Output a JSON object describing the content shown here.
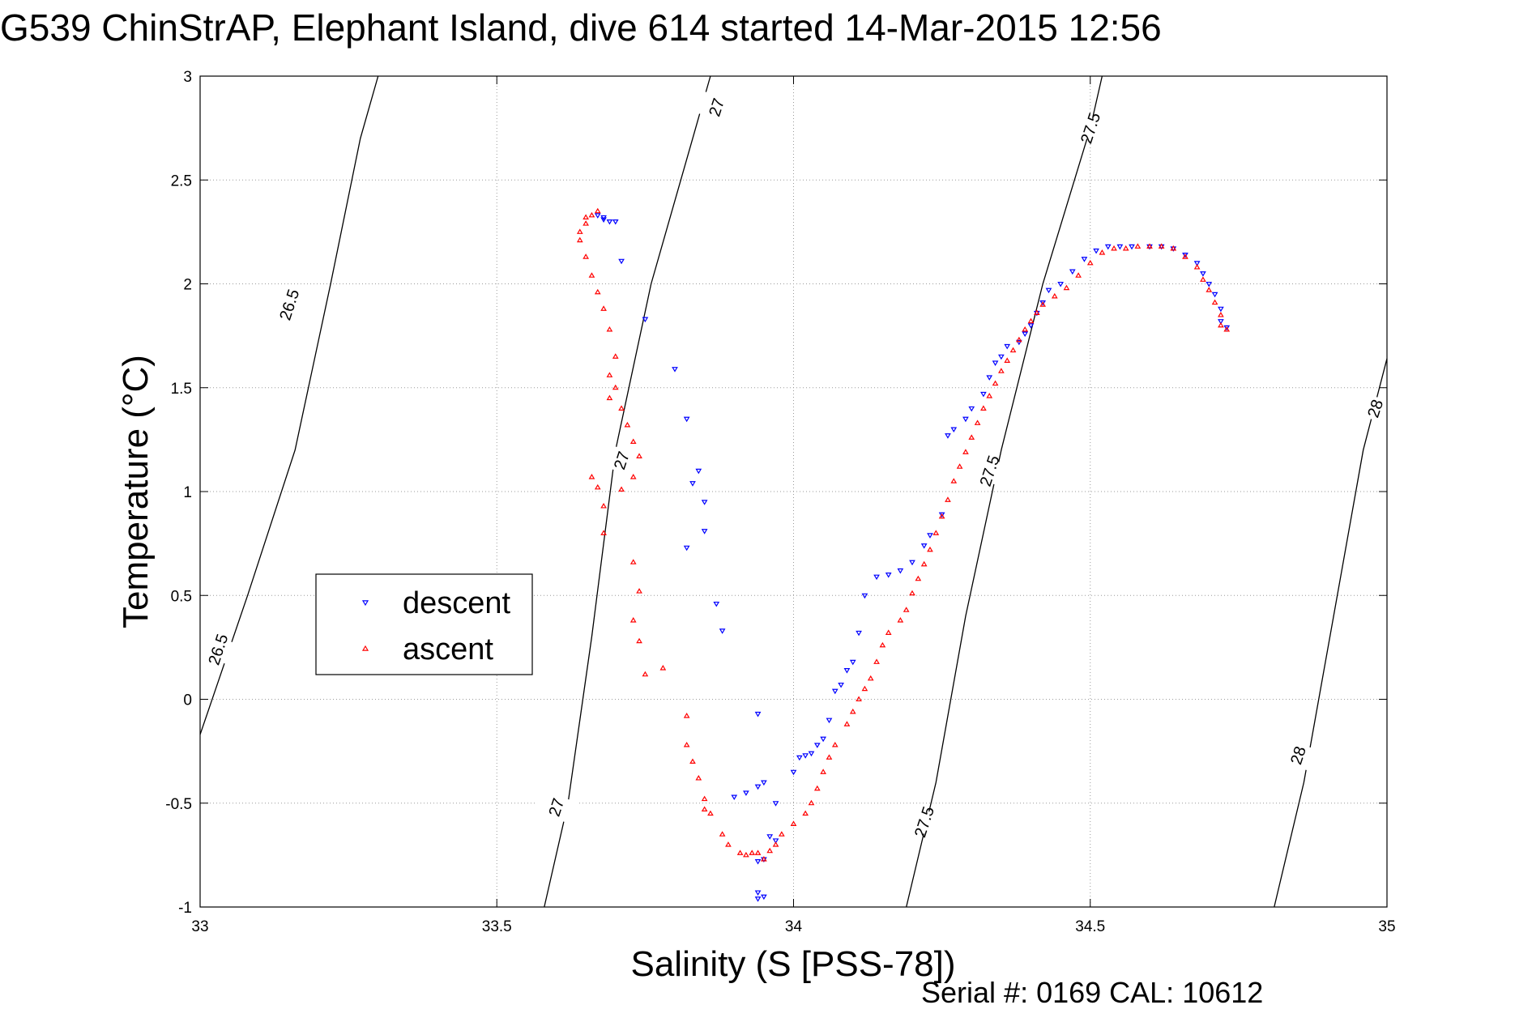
{
  "chart_data": {
    "type": "scatter",
    "title": "G539 ChinStrAP, Elephant Island, dive 614 started 14-Mar-2015 12:56",
    "xlabel": "Salinity (S [PSS-78])",
    "ylabel": "Temperature (°C)",
    "xlim": [
      33,
      35
    ],
    "ylim": [
      -1,
      3
    ],
    "xticks": [
      33,
      33.5,
      34,
      34.5,
      35
    ],
    "xtick_labels": [
      "33",
      "33.5",
      "34",
      "34.5",
      "35"
    ],
    "yticks": [
      -1,
      -0.5,
      0,
      0.5,
      1,
      1.5,
      2,
      2.5,
      3
    ],
    "ytick_labels": [
      "-1",
      "-0.5",
      "0",
      "0.5",
      "1",
      "1.5",
      "2",
      "2.5",
      "3"
    ],
    "grid": true,
    "legend_position": "middle-left",
    "footer": "Serial #: 0169 CAL: 10612",
    "contours": [
      {
        "level": "26.5",
        "points": [
          [
            33.0,
            -0.17
          ],
          [
            33.08,
            0.5
          ],
          [
            33.16,
            1.2
          ],
          [
            33.22,
            2.0
          ],
          [
            33.27,
            2.7
          ],
          [
            33.3,
            3.0
          ]
        ],
        "labels": [
          {
            "x": 33.03,
            "y": 0.24
          },
          {
            "x": 33.15,
            "y": 1.9
          }
        ]
      },
      {
        "level": "27",
        "points": [
          [
            33.58,
            -1.0
          ],
          [
            33.62,
            -0.5
          ],
          [
            33.66,
            0.3
          ],
          [
            33.7,
            1.2
          ],
          [
            33.76,
            2.0
          ],
          [
            33.83,
            2.7
          ],
          [
            33.86,
            3.0
          ]
        ],
        "labels": [
          {
            "x": 33.6,
            "y": -0.52
          },
          {
            "x": 33.71,
            "y": 1.15
          },
          {
            "x": 33.87,
            "y": 2.85
          }
        ]
      },
      {
        "level": "27.5",
        "points": [
          [
            34.19,
            -1.0
          ],
          [
            34.24,
            -0.4
          ],
          [
            34.29,
            0.4
          ],
          [
            34.35,
            1.2
          ],
          [
            34.42,
            2.0
          ],
          [
            34.5,
            2.75
          ],
          [
            34.52,
            3.0
          ]
        ],
        "labels": [
          {
            "x": 34.22,
            "y": -0.59
          },
          {
            "x": 34.33,
            "y": 1.1
          },
          {
            "x": 34.5,
            "y": 2.75
          }
        ]
      },
      {
        "level": "28",
        "points": [
          [
            34.81,
            -1.0
          ],
          [
            34.86,
            -0.4
          ],
          [
            34.91,
            0.4
          ],
          [
            34.96,
            1.2
          ],
          [
            35.0,
            1.64
          ]
        ],
        "labels": [
          {
            "x": 34.85,
            "y": -0.27
          },
          {
            "x": 34.98,
            "y": 1.4
          }
        ]
      }
    ],
    "series": [
      {
        "name": "descent",
        "color": "#0000ff",
        "marker": "triangle-down",
        "points": [
          [
            33.67,
            2.33
          ],
          [
            33.68,
            2.32
          ],
          [
            33.68,
            2.31
          ],
          [
            33.69,
            2.3
          ],
          [
            33.7,
            2.3
          ],
          [
            33.71,
            2.11
          ],
          [
            33.75,
            1.83
          ],
          [
            33.8,
            1.59
          ],
          [
            33.82,
            1.35
          ],
          [
            33.83,
            1.04
          ],
          [
            33.84,
            1.1
          ],
          [
            33.85,
            0.95
          ],
          [
            33.85,
            0.81
          ],
          [
            33.82,
            0.73
          ],
          [
            33.87,
            0.46
          ],
          [
            33.88,
            0.33
          ],
          [
            33.94,
            -0.07
          ],
          [
            33.9,
            -0.47
          ],
          [
            33.92,
            -0.45
          ],
          [
            33.94,
            -0.42
          ],
          [
            33.95,
            -0.4
          ],
          [
            33.97,
            -0.5
          ],
          [
            33.96,
            -0.66
          ],
          [
            33.97,
            -0.68
          ],
          [
            33.94,
            -0.78
          ],
          [
            33.95,
            -0.77
          ],
          [
            33.94,
            -0.93
          ],
          [
            33.95,
            -0.95
          ],
          [
            33.94,
            -0.96
          ],
          [
            34.0,
            -0.35
          ],
          [
            34.01,
            -0.28
          ],
          [
            34.02,
            -0.27
          ],
          [
            34.03,
            -0.26
          ],
          [
            34.04,
            -0.22
          ],
          [
            34.05,
            -0.19
          ],
          [
            34.06,
            -0.1
          ],
          [
            34.07,
            0.04
          ],
          [
            34.08,
            0.07
          ],
          [
            34.09,
            0.14
          ],
          [
            34.1,
            0.18
          ],
          [
            34.11,
            0.32
          ],
          [
            34.12,
            0.5
          ],
          [
            34.14,
            0.59
          ],
          [
            34.16,
            0.6
          ],
          [
            34.18,
            0.62
          ],
          [
            34.2,
            0.66
          ],
          [
            34.22,
            0.74
          ],
          [
            34.23,
            0.79
          ],
          [
            34.25,
            0.89
          ],
          [
            34.26,
            1.27
          ],
          [
            34.27,
            1.3
          ],
          [
            34.29,
            1.35
          ],
          [
            34.3,
            1.4
          ],
          [
            34.32,
            1.47
          ],
          [
            34.33,
            1.55
          ],
          [
            34.34,
            1.62
          ],
          [
            34.35,
            1.65
          ],
          [
            34.36,
            1.7
          ],
          [
            34.38,
            1.72
          ],
          [
            34.39,
            1.76
          ],
          [
            34.4,
            1.8
          ],
          [
            34.41,
            1.86
          ],
          [
            34.42,
            1.91
          ],
          [
            34.43,
            1.97
          ],
          [
            34.45,
            2.0
          ],
          [
            34.47,
            2.06
          ],
          [
            34.49,
            2.12
          ],
          [
            34.51,
            2.16
          ],
          [
            34.53,
            2.18
          ],
          [
            34.55,
            2.18
          ],
          [
            34.57,
            2.18
          ],
          [
            34.6,
            2.18
          ],
          [
            34.62,
            2.18
          ],
          [
            34.64,
            2.17
          ],
          [
            34.66,
            2.14
          ],
          [
            34.68,
            2.1
          ],
          [
            34.69,
            2.05
          ],
          [
            34.7,
            2.0
          ],
          [
            34.71,
            1.95
          ],
          [
            34.72,
            1.88
          ],
          [
            34.72,
            1.82
          ],
          [
            34.73,
            1.79
          ]
        ]
      },
      {
        "name": "ascent",
        "color": "#ff0000",
        "marker": "triangle-up",
        "points": [
          [
            33.67,
            2.35
          ],
          [
            33.66,
            2.33
          ],
          [
            33.65,
            2.32
          ],
          [
            33.65,
            2.29
          ],
          [
            33.64,
            2.25
          ],
          [
            33.64,
            2.21
          ],
          [
            33.65,
            2.13
          ],
          [
            33.66,
            2.04
          ],
          [
            33.67,
            1.96
          ],
          [
            33.68,
            1.88
          ],
          [
            33.69,
            1.78
          ],
          [
            33.7,
            1.65
          ],
          [
            33.69,
            1.56
          ],
          [
            33.7,
            1.5
          ],
          [
            33.69,
            1.45
          ],
          [
            33.71,
            1.4
          ],
          [
            33.72,
            1.32
          ],
          [
            33.73,
            1.24
          ],
          [
            33.74,
            1.17
          ],
          [
            33.73,
            1.07
          ],
          [
            33.71,
            1.01
          ],
          [
            33.66,
            1.07
          ],
          [
            33.67,
            1.02
          ],
          [
            33.68,
            0.93
          ],
          [
            33.68,
            0.8
          ],
          [
            33.73,
            0.66
          ],
          [
            33.74,
            0.52
          ],
          [
            33.73,
            0.38
          ],
          [
            33.74,
            0.28
          ],
          [
            33.75,
            0.12
          ],
          [
            33.78,
            0.15
          ],
          [
            33.82,
            -0.08
          ],
          [
            33.82,
            -0.22
          ],
          [
            33.83,
            -0.3
          ],
          [
            33.84,
            -0.38
          ],
          [
            33.85,
            -0.48
          ],
          [
            33.85,
            -0.53
          ],
          [
            33.86,
            -0.55
          ],
          [
            33.88,
            -0.65
          ],
          [
            33.89,
            -0.7
          ],
          [
            33.91,
            -0.74
          ],
          [
            33.92,
            -0.75
          ],
          [
            33.93,
            -0.74
          ],
          [
            33.94,
            -0.74
          ],
          [
            33.95,
            -0.77
          ],
          [
            33.96,
            -0.73
          ],
          [
            33.97,
            -0.7
          ],
          [
            33.98,
            -0.65
          ],
          [
            34.0,
            -0.6
          ],
          [
            34.02,
            -0.55
          ],
          [
            34.03,
            -0.5
          ],
          [
            34.04,
            -0.43
          ],
          [
            34.05,
            -0.35
          ],
          [
            34.06,
            -0.28
          ],
          [
            34.07,
            -0.22
          ],
          [
            34.09,
            -0.12
          ],
          [
            34.1,
            -0.06
          ],
          [
            34.11,
            0.0
          ],
          [
            34.12,
            0.05
          ],
          [
            34.13,
            0.1
          ],
          [
            34.14,
            0.18
          ],
          [
            34.15,
            0.26
          ],
          [
            34.16,
            0.32
          ],
          [
            34.18,
            0.38
          ],
          [
            34.19,
            0.43
          ],
          [
            34.2,
            0.51
          ],
          [
            34.21,
            0.58
          ],
          [
            34.22,
            0.65
          ],
          [
            34.23,
            0.72
          ],
          [
            34.24,
            0.8
          ],
          [
            34.25,
            0.88
          ],
          [
            34.26,
            0.96
          ],
          [
            34.27,
            1.05
          ],
          [
            34.28,
            1.12
          ],
          [
            34.29,
            1.19
          ],
          [
            34.3,
            1.26
          ],
          [
            34.31,
            1.33
          ],
          [
            34.32,
            1.4
          ],
          [
            34.33,
            1.46
          ],
          [
            34.34,
            1.52
          ],
          [
            34.35,
            1.58
          ],
          [
            34.36,
            1.63
          ],
          [
            34.37,
            1.68
          ],
          [
            34.38,
            1.73
          ],
          [
            34.39,
            1.78
          ],
          [
            34.4,
            1.82
          ],
          [
            34.41,
            1.86
          ],
          [
            34.42,
            1.9
          ],
          [
            34.44,
            1.94
          ],
          [
            34.46,
            1.98
          ],
          [
            34.48,
            2.04
          ],
          [
            34.5,
            2.1
          ],
          [
            34.52,
            2.15
          ],
          [
            34.54,
            2.17
          ],
          [
            34.56,
            2.17
          ],
          [
            34.58,
            2.18
          ],
          [
            34.6,
            2.18
          ],
          [
            34.62,
            2.18
          ],
          [
            34.64,
            2.17
          ],
          [
            34.66,
            2.13
          ],
          [
            34.68,
            2.08
          ],
          [
            34.69,
            2.02
          ],
          [
            34.7,
            1.97
          ],
          [
            34.71,
            1.91
          ],
          [
            34.72,
            1.85
          ],
          [
            34.72,
            1.8
          ],
          [
            34.73,
            1.78
          ]
        ]
      }
    ]
  }
}
